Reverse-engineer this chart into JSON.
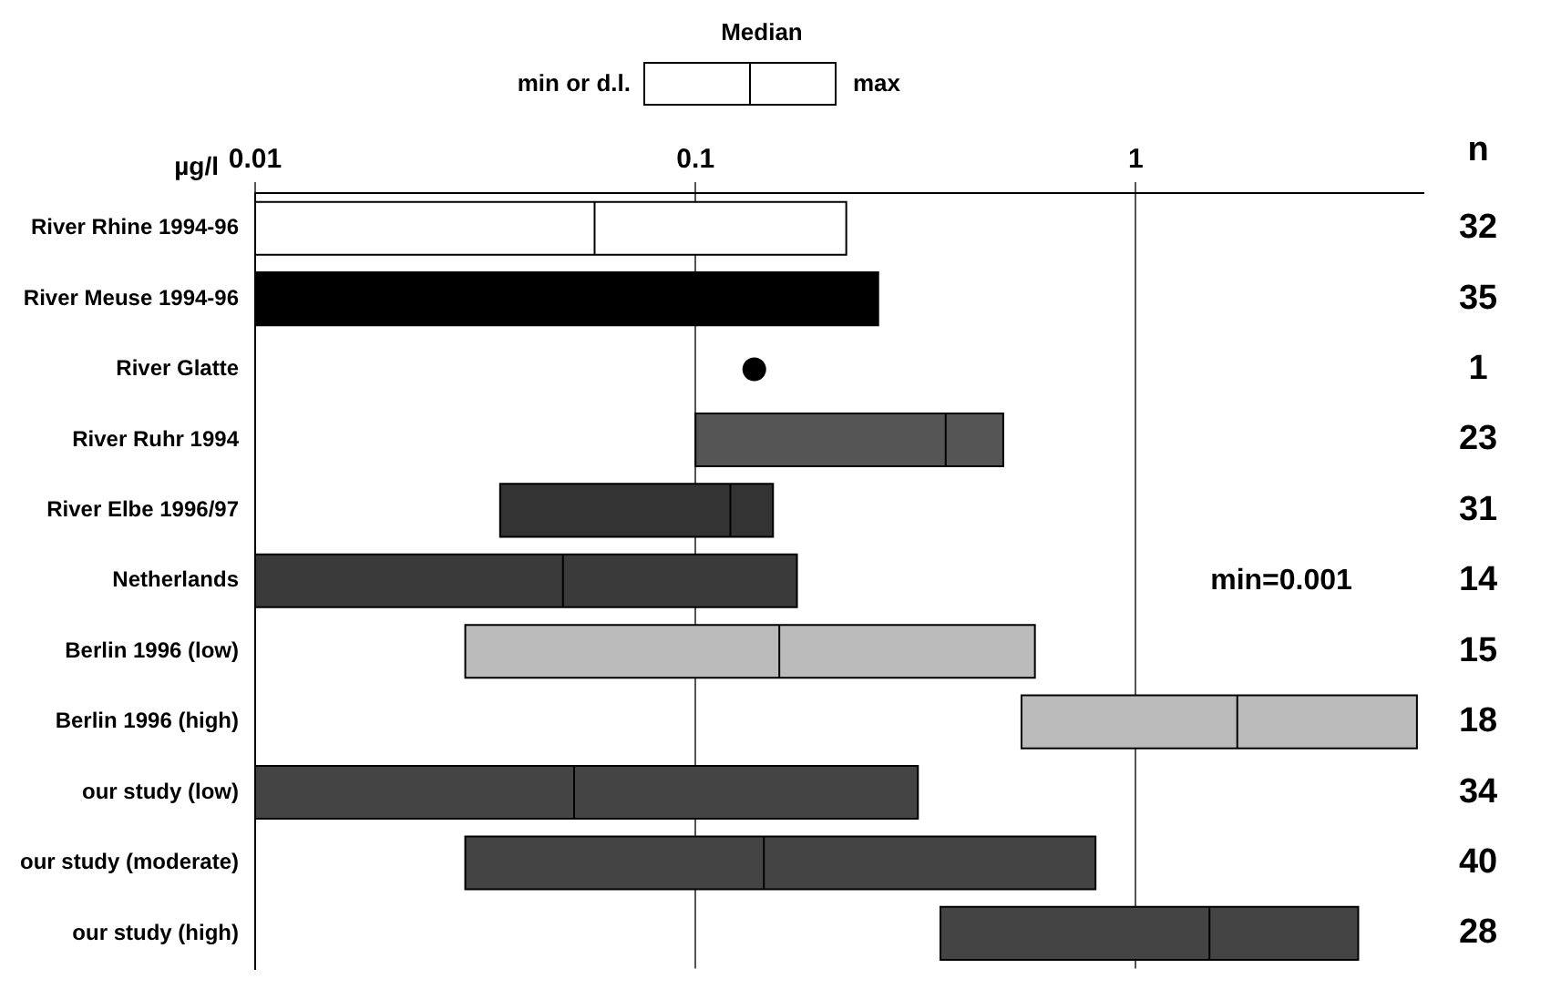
{
  "chart_data": {
    "type": "box",
    "orientation": "horizontal",
    "xlabel": "µg/l",
    "xlim": [
      0.01,
      4.5
    ],
    "xticks": [
      0.01,
      0.1,
      1
    ],
    "log": "x",
    "grid": "x",
    "categories": [
      "River Rhine 1994-96",
      "River Meuse 1994-96",
      "River Glatte",
      "River Ruhr 1994",
      "River Elbe 1996/97",
      "Netherlands",
      "Berlin 1996 (low)",
      "Berlin 1996 (high)",
      "our study (low)",
      "our study (moderate)",
      "our study (high)"
    ],
    "series": [
      {
        "type": "box",
        "colors": [
          "#ffffff",
          "#000000",
          null,
          "#555555",
          "#333333",
          "#3a3a3a",
          "#bbbbbb",
          "#bbbbbb",
          "#444444",
          "#444444",
          "#444444"
        ],
        "boxes": [
          {
            "low": 0.01,
            "q1": 0.01,
            "median": 0.059,
            "q3": 0.22,
            "high": 0.22
          },
          {
            "low": 0.01,
            "q1": 0.01,
            "median": null,
            "q3": 0.26,
            "high": 0.26
          },
          null,
          {
            "low": 0.1,
            "q1": 0.1,
            "median": 0.37,
            "q3": 0.5,
            "high": 0.5
          },
          {
            "low": 0.036,
            "q1": 0.036,
            "median": 0.12,
            "q3": 0.15,
            "high": 0.15
          },
          {
            "low": 0.01,
            "q1": 0.01,
            "median": 0.05,
            "q3": 0.17,
            "high": 0.17
          },
          {
            "low": 0.03,
            "q1": 0.03,
            "median": 0.155,
            "q3": 0.59,
            "high": 0.59
          },
          {
            "low": 0.55,
            "q1": 0.55,
            "median": 1.7,
            "q3": 4.35,
            "high": 4.35
          },
          {
            "low": 0.01,
            "q1": 0.01,
            "median": 0.053,
            "q3": 0.32,
            "high": 0.32
          },
          {
            "low": 0.03,
            "q1": 0.03,
            "median": 0.143,
            "q3": 0.81,
            "high": 0.81
          },
          {
            "low": 0.36,
            "q1": 0.36,
            "median": 1.47,
            "q3": 3.2,
            "high": 3.2
          }
        ]
      },
      {
        "type": "scatter",
        "x": [
          "River Glatte"
        ],
        "values": [
          0.136
        ],
        "color": "#000000",
        "marker": "circle"
      }
    ],
    "annotations": [
      "Median",
      "min or d.l.",
      "max",
      "n",
      "min=0.001",
      "32",
      "35",
      "1",
      "23",
      "31",
      "14",
      "15",
      "18",
      "34",
      "40",
      "28"
    ]
  }
}
